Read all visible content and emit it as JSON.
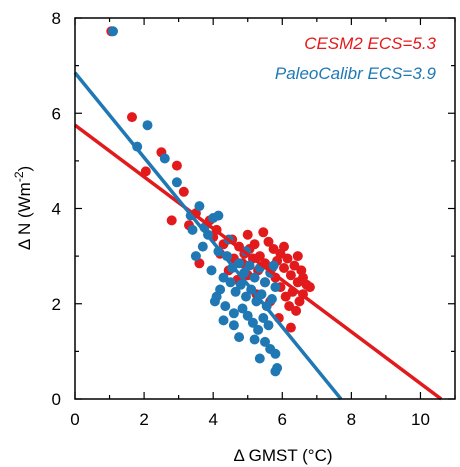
{
  "chart_data": {
    "type": "scatter",
    "xlabel": "Δ GMST (°C)",
    "ylabel_main": "Δ N (Wm",
    "ylabel_sup": "-2",
    "ylabel_close": ")",
    "xlim": [
      0,
      11
    ],
    "ylim": [
      0,
      8
    ],
    "xticks": [
      0,
      2,
      4,
      6,
      8,
      10
    ],
    "yticks": [
      0,
      2,
      4,
      6,
      8
    ],
    "grid": false,
    "legend_placement": "top-right",
    "series": [
      {
        "name": "CESM2 ECS=5.3",
        "color": "#e31a1c",
        "regression": {
          "intercept": 5.75,
          "x_intercept": 10.6
        },
        "points": [
          [
            1.05,
            7.72
          ],
          [
            1.65,
            5.92
          ],
          [
            2.05,
            4.78
          ],
          [
            2.5,
            5.18
          ],
          [
            2.95,
            4.9
          ],
          [
            3.15,
            4.35
          ],
          [
            3.3,
            3.65
          ],
          [
            3.5,
            3.9
          ],
          [
            3.9,
            3.75
          ],
          [
            4.0,
            3.4
          ],
          [
            2.8,
            3.75
          ],
          [
            4.1,
            3.55
          ],
          [
            4.3,
            3.25
          ],
          [
            4.55,
            3.35
          ],
          [
            4.75,
            3.2
          ],
          [
            4.9,
            3.05
          ],
          [
            5.0,
            3.45
          ],
          [
            5.2,
            3.25
          ],
          [
            5.35,
            3.0
          ],
          [
            5.5,
            2.85
          ],
          [
            5.6,
            3.3
          ],
          [
            5.75,
            3.15
          ],
          [
            5.85,
            2.9
          ],
          [
            5.95,
            3.05
          ],
          [
            6.05,
            2.75
          ],
          [
            6.15,
            2.95
          ],
          [
            6.25,
            2.6
          ],
          [
            6.35,
            2.8
          ],
          [
            6.45,
            2.45
          ],
          [
            6.55,
            2.7
          ],
          [
            6.6,
            2.2
          ],
          [
            6.7,
            2.4
          ],
          [
            6.5,
            2.05
          ],
          [
            6.3,
            2.25
          ],
          [
            6.2,
            1.95
          ],
          [
            6.1,
            2.15
          ],
          [
            5.95,
            2.35
          ],
          [
            5.8,
            2.55
          ],
          [
            5.65,
            2.05
          ],
          [
            5.5,
            2.45
          ],
          [
            5.3,
            2.7
          ],
          [
            5.15,
            2.95
          ],
          [
            5.0,
            2.6
          ],
          [
            4.85,
            2.85
          ],
          [
            4.7,
            2.5
          ],
          [
            4.6,
            2.95
          ],
          [
            4.45,
            2.7
          ],
          [
            5.9,
            1.7
          ],
          [
            6.4,
            1.85
          ],
          [
            6.25,
            1.5
          ],
          [
            6.6,
            2.55
          ],
          [
            6.05,
            3.2
          ],
          [
            5.45,
            3.5
          ],
          [
            5.05,
            3.15
          ],
          [
            4.2,
            3.05
          ],
          [
            3.6,
            2.85
          ],
          [
            6.8,
            2.35
          ],
          [
            6.45,
            3.0
          ],
          [
            5.7,
            2.75
          ],
          [
            5.25,
            2.2
          ]
        ]
      },
      {
        "name": "PaleoCalibr ECS=3.9",
        "color": "#1f78b4",
        "regression": {
          "intercept": 6.85,
          "x_intercept": 7.7
        },
        "points": [
          [
            1.1,
            7.72
          ],
          [
            2.1,
            5.75
          ],
          [
            1.8,
            5.3
          ],
          [
            2.6,
            5.05
          ],
          [
            2.95,
            4.55
          ],
          [
            3.6,
            4.05
          ],
          [
            3.35,
            3.85
          ],
          [
            3.75,
            3.6
          ],
          [
            3.4,
            3.55
          ],
          [
            4.0,
            3.8
          ],
          [
            3.85,
            3.45
          ],
          [
            4.15,
            3.1
          ],
          [
            3.5,
            3.0
          ],
          [
            3.95,
            2.7
          ],
          [
            4.4,
            3.0
          ],
          [
            4.55,
            2.75
          ],
          [
            4.75,
            2.85
          ],
          [
            4.9,
            2.65
          ],
          [
            5.05,
            2.8
          ],
          [
            5.2,
            2.55
          ],
          [
            5.35,
            2.75
          ],
          [
            5.5,
            2.45
          ],
          [
            5.65,
            2.65
          ],
          [
            5.8,
            2.35
          ],
          [
            4.5,
            2.45
          ],
          [
            4.65,
            2.25
          ],
          [
            4.8,
            2.4
          ],
          [
            4.95,
            2.15
          ],
          [
            5.1,
            2.3
          ],
          [
            5.25,
            2.05
          ],
          [
            5.4,
            2.2
          ],
          [
            5.55,
            1.95
          ],
          [
            5.7,
            2.1
          ],
          [
            4.3,
            2.55
          ],
          [
            4.2,
            2.3
          ],
          [
            4.85,
            1.9
          ],
          [
            5.0,
            1.75
          ],
          [
            5.15,
            1.6
          ],
          [
            5.3,
            1.45
          ],
          [
            5.45,
            1.7
          ],
          [
            5.6,
            1.55
          ],
          [
            4.6,
            1.8
          ],
          [
            4.35,
            1.95
          ],
          [
            4.1,
            2.15
          ],
          [
            4.6,
            1.55
          ],
          [
            4.75,
            1.3
          ],
          [
            5.2,
            1.25
          ],
          [
            5.5,
            1.2
          ],
          [
            5.65,
            1.05
          ],
          [
            5.8,
            0.95
          ],
          [
            5.35,
            0.85
          ],
          [
            5.85,
            0.65
          ],
          [
            5.8,
            0.58
          ],
          [
            4.05,
            2.05
          ],
          [
            4.95,
            3.1
          ],
          [
            5.75,
            2.8
          ],
          [
            4.45,
            3.35
          ],
          [
            4.15,
            3.85
          ],
          [
            3.7,
            3.2
          ],
          [
            4.3,
            1.65
          ]
        ]
      }
    ]
  }
}
